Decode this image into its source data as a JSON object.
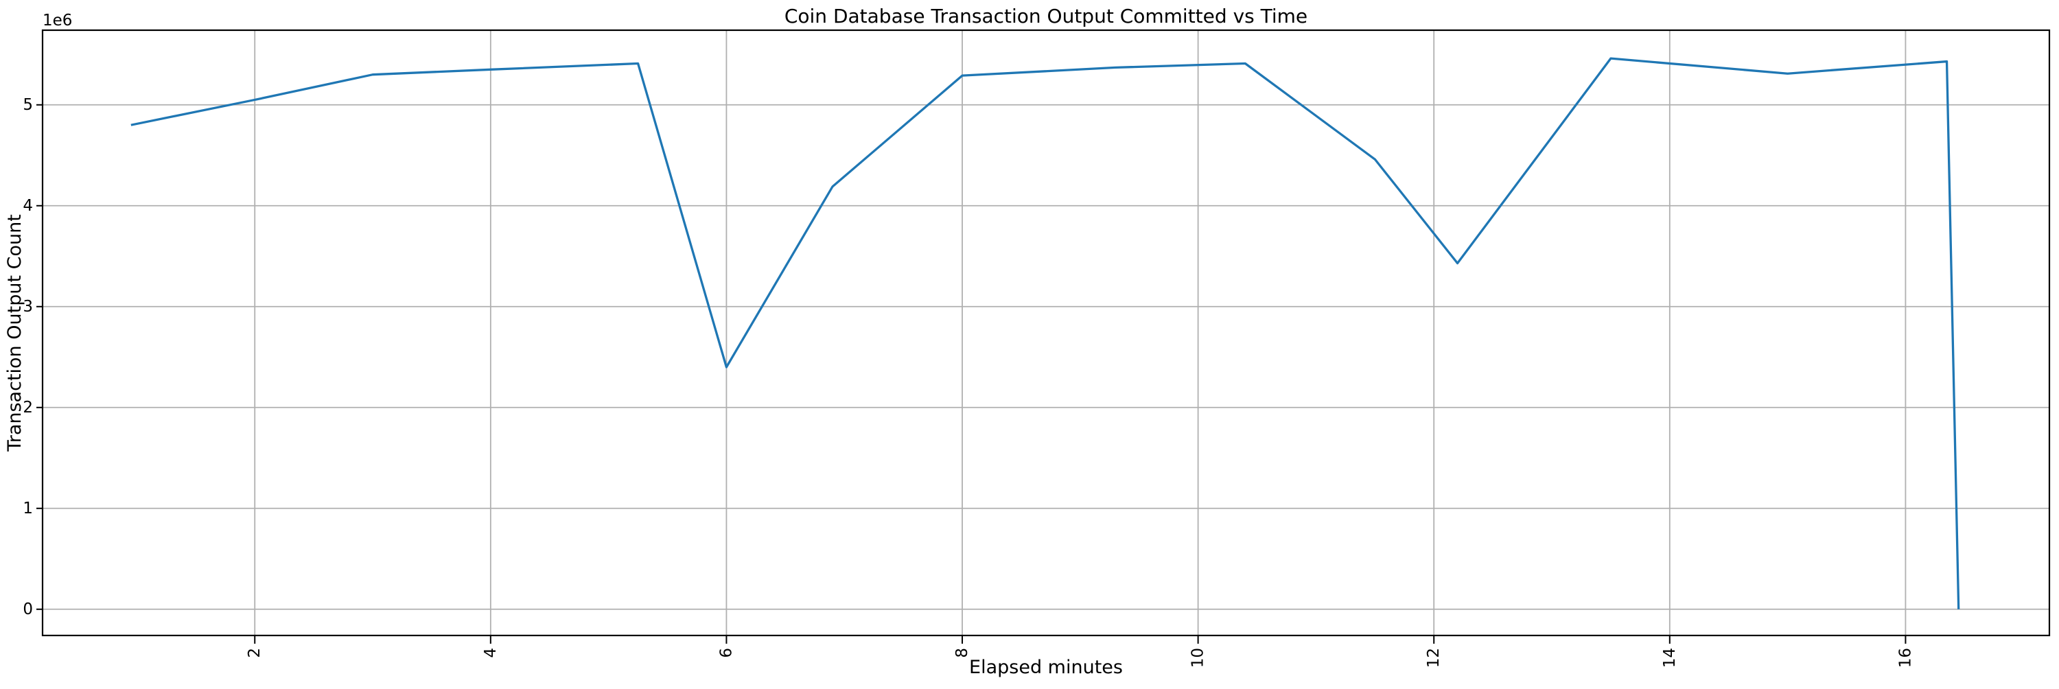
{
  "figure": {
    "background": "#ffffff",
    "offset_text": "1e6"
  },
  "colors": {
    "line": "#1f77b4",
    "grid": "#b0b0b0",
    "spine": "#000000",
    "text": "#000000"
  },
  "chart_data": {
    "type": "line",
    "title": "Coin Database Transaction Output Committed vs Time",
    "xlabel": "Elapsed minutes",
    "ylabel": "Transaction Output Count",
    "y_offset_text": "1e6",
    "grid": true,
    "legend": "none",
    "xlim": [
      0.2,
      17.22
    ],
    "ylim": [
      -260000,
      5740000
    ],
    "xticks": [
      2,
      4,
      6,
      8,
      10,
      12,
      14,
      16
    ],
    "xtick_labels": [
      "2",
      "4",
      "6",
      "8",
      "10",
      "12",
      "14",
      "16"
    ],
    "xtick_rotation_deg": 90,
    "yticks": [
      0,
      1000000,
      2000000,
      3000000,
      4000000,
      5000000
    ],
    "ytick_labels": [
      "0",
      "1",
      "2",
      "3",
      "4",
      "5"
    ],
    "series": [
      {
        "name": "Transaction Output Count",
        "color": "#1f77b4",
        "points": [
          [
            0.95,
            4800000
          ],
          [
            2.0,
            5050000
          ],
          [
            3.0,
            5300000
          ],
          [
            4.0,
            5350000
          ],
          [
            5.25,
            5410000
          ],
          [
            6.0,
            2400000
          ],
          [
            6.9,
            4190000
          ],
          [
            8.0,
            5290000
          ],
          [
            9.3,
            5370000
          ],
          [
            10.4,
            5410000
          ],
          [
            11.5,
            4460000
          ],
          [
            12.2,
            3430000
          ],
          [
            13.5,
            5460000
          ],
          [
            15.0,
            5310000
          ],
          [
            16.35,
            5430000
          ],
          [
            16.45,
            0
          ]
        ]
      }
    ]
  }
}
